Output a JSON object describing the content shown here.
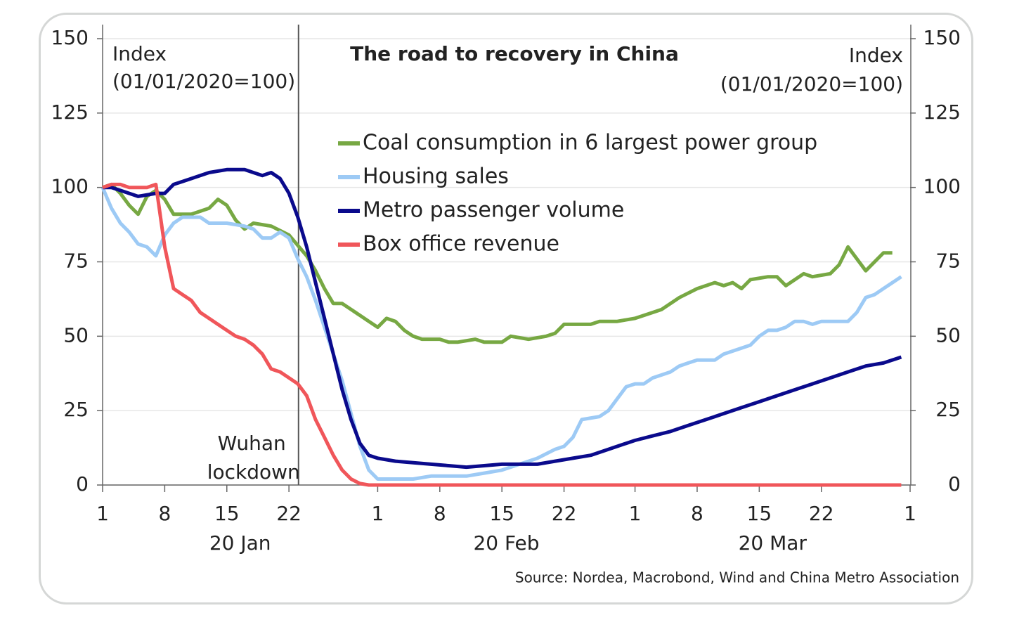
{
  "chart_data": {
    "type": "line",
    "title": "The road to recovery in China",
    "y_label": [
      "Index",
      "(01/01/2020=100)"
    ],
    "y2_label": [
      "Index",
      "(01/01/2020=100)"
    ],
    "source": "Source: Nordea, Macrobond, Wind and China Metro Association",
    "xlim": [
      0,
      91
    ],
    "xticks": [
      {
        "value": 0,
        "label": "1"
      },
      {
        "value": 7,
        "label": "8"
      },
      {
        "value": 14,
        "label": "15"
      },
      {
        "value": 21,
        "label": "22"
      },
      {
        "value": 31,
        "label": "1"
      },
      {
        "value": 38,
        "label": "8"
      },
      {
        "value": 45,
        "label": "15"
      },
      {
        "value": 52,
        "label": "22"
      },
      {
        "value": 60,
        "label": "1"
      },
      {
        "value": 67,
        "label": "8"
      },
      {
        "value": 74,
        "label": "15"
      },
      {
        "value": 81,
        "label": "22"
      },
      {
        "value": 91,
        "label": "1"
      }
    ],
    "x_groups": [
      {
        "label": "20 Jan",
        "range": [
          0,
          31
        ]
      },
      {
        "label": "20 Feb",
        "range": [
          31,
          60
        ]
      },
      {
        "label": "20 Mar",
        "range": [
          60,
          91
        ]
      }
    ],
    "ylim": [
      0,
      150
    ],
    "yticks": [
      0,
      25,
      50,
      75,
      100,
      125,
      150
    ],
    "y2lim": [
      0,
      150
    ],
    "y2ticks": [
      0,
      25,
      50,
      75,
      100,
      125,
      150
    ],
    "grid": true,
    "annotations": [
      {
        "x": 22,
        "text": [
          "Wuhan",
          "lockdown"
        ]
      }
    ],
    "series": [
      {
        "name": "Coal consumption in 6 largest power group",
        "color": "#77a843",
        "x": [
          0,
          1,
          2,
          3,
          4,
          5,
          6,
          7,
          8,
          10,
          12,
          13,
          14,
          15,
          16,
          17,
          19,
          21,
          23,
          24,
          25,
          26,
          27,
          28,
          29,
          30,
          31,
          32,
          33,
          34,
          35,
          36,
          38,
          39,
          40,
          42,
          43,
          45,
          46,
          48,
          50,
          51,
          52,
          55,
          56,
          58,
          60,
          62,
          63,
          65,
          67,
          68,
          69,
          70,
          71,
          72,
          73,
          75,
          76,
          77,
          79,
          80,
          82,
          83,
          84,
          86,
          88,
          89
        ],
        "values": [
          100,
          101,
          98,
          94,
          91,
          97,
          99,
          96,
          91,
          91,
          93,
          96,
          94,
          89,
          86,
          88,
          87,
          84,
          77,
          72,
          66,
          61,
          61,
          59,
          57,
          55,
          53,
          56,
          55,
          52,
          50,
          49,
          49,
          48,
          48,
          49,
          48,
          48,
          50,
          49,
          50,
          51,
          54,
          54,
          55,
          55,
          56,
          58,
          59,
          63,
          66,
          67,
          68,
          67,
          68,
          66,
          69,
          70,
          70,
          67,
          71,
          70,
          71,
          74,
          80,
          72,
          78,
          78
        ]
      },
      {
        "name": "Housing sales",
        "color": "#9dcaf5",
        "x": [
          0,
          1,
          2,
          3,
          4,
          5,
          6,
          7,
          8,
          9,
          11,
          12,
          14,
          16,
          17,
          18,
          19,
          20,
          21,
          22,
          23,
          24,
          25,
          26,
          27,
          28,
          29,
          30,
          31,
          33,
          35,
          37,
          39,
          41,
          43,
          45,
          47,
          49,
          51,
          52,
          53,
          54,
          56,
          57,
          58,
          59,
          60,
          61,
          62,
          64,
          65,
          66,
          67,
          69,
          70,
          72,
          73,
          74,
          75,
          76,
          77,
          78,
          79,
          80,
          81,
          83,
          84,
          85,
          86,
          87,
          88,
          90
        ],
        "values": [
          100,
          93,
          88,
          85,
          81,
          80,
          77,
          84,
          88,
          90,
          90,
          88,
          88,
          87,
          86,
          83,
          83,
          85,
          83,
          76,
          70,
          62,
          53,
          44,
          35,
          24,
          13,
          5,
          2,
          2,
          2,
          3,
          3,
          3,
          4,
          5,
          7,
          9,
          12,
          13,
          16,
          22,
          23,
          25,
          29,
          33,
          34,
          34,
          36,
          38,
          40,
          41,
          42,
          42,
          44,
          46,
          47,
          50,
          52,
          52,
          53,
          55,
          55,
          54,
          55,
          55,
          55,
          58,
          63,
          64,
          66,
          70
        ]
      },
      {
        "name": "Metro passenger volume",
        "color": "#0a0a8c",
        "x": [
          0,
          1,
          2,
          3,
          4,
          6,
          7,
          8,
          9,
          10,
          11,
          12,
          14,
          16,
          17,
          18,
          19,
          20,
          21,
          22,
          23,
          24,
          25,
          26,
          27,
          28,
          29,
          30,
          31,
          33,
          35,
          37,
          39,
          41,
          43,
          45,
          47,
          49,
          51,
          53,
          55,
          57,
          59,
          60,
          62,
          64,
          66,
          68,
          70,
          72,
          74,
          76,
          78,
          80,
          82,
          84,
          86,
          88,
          90
        ],
        "values": [
          100,
          100,
          99,
          98,
          97,
          98,
          98,
          101,
          102,
          103,
          104,
          105,
          106,
          106,
          105,
          104,
          105,
          103,
          98,
          90,
          80,
          68,
          56,
          44,
          32,
          22,
          14,
          10,
          9,
          8,
          7.5,
          7,
          6.5,
          6,
          6.5,
          7,
          7,
          7,
          8,
          9,
          10,
          12,
          14,
          15,
          16.5,
          18,
          20,
          22,
          24,
          26,
          28,
          30,
          32,
          34,
          36,
          38,
          40,
          41,
          43
        ]
      },
      {
        "name": "Box office revenue",
        "color": "#f0565a",
        "x": [
          0,
          1,
          2,
          3,
          4,
          5,
          6,
          7,
          8,
          9,
          10,
          11,
          12,
          13,
          14,
          15,
          16,
          17,
          18,
          19,
          20,
          21,
          22,
          23,
          24,
          25,
          26,
          27,
          28,
          29,
          30,
          40,
          50,
          60,
          70,
          80,
          90
        ],
        "values": [
          100,
          101,
          101,
          100,
          100,
          100,
          101,
          80,
          66,
          64,
          62,
          58,
          56,
          54,
          52,
          50,
          49,
          47,
          44,
          39,
          38,
          36,
          34,
          30,
          22,
          16,
          10,
          5,
          2,
          0.5,
          0,
          0,
          0,
          0,
          0,
          0,
          0
        ]
      }
    ]
  }
}
